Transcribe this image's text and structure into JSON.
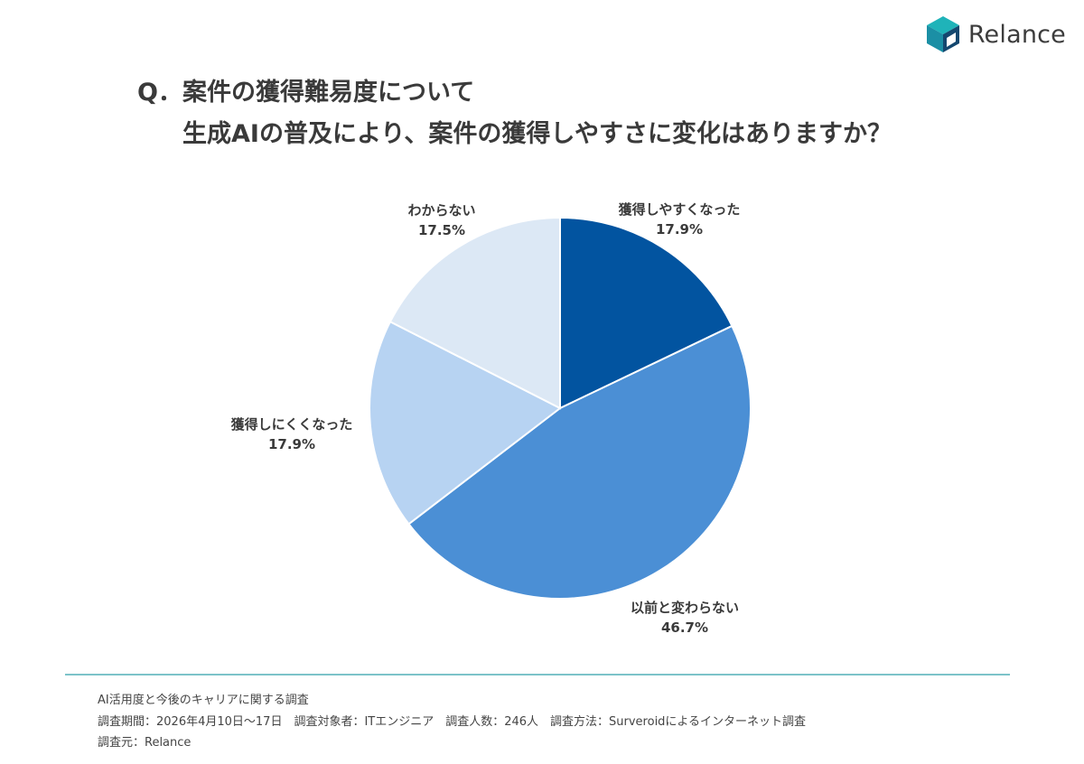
{
  "brand": {
    "name": "Relance",
    "icon": "cube-logo-icon",
    "colors": [
      "#1fb3b9",
      "#1b8fa5",
      "#14476f"
    ]
  },
  "question": {
    "prefix": "Q．",
    "line1": "案件の獲得難易度について",
    "line2": "生成AIの普及により、案件の獲得しやすさに変化はありますか？"
  },
  "chart_data": {
    "type": "pie",
    "start": "12 o'clock",
    "direction": "clockwise",
    "slices": [
      {
        "label": "獲得しやすくなった",
        "value": 17.9,
        "value_text": "17.9%",
        "color": "#0254a0"
      },
      {
        "label": "以前と変わらない",
        "value": 46.7,
        "value_text": "46.7%",
        "color": "#4b8fd5"
      },
      {
        "label": "獲得しにくくなった",
        "value": 17.9,
        "value_text": "17.9%",
        "color": "#b7d3f2"
      },
      {
        "label": "わからない",
        "value": 17.5,
        "value_text": "17.5%",
        "color": "#dce8f5"
      }
    ]
  },
  "footer": {
    "line1": "AI活用度と今後のキャリアに関する調査",
    "line2": "調査期間：2026年4月10日～17日　調査対象者：ITエンジニア　調査人数：246人　調査方法：Surveroidによるインターネット調査",
    "line3": "調査元：Relance"
  }
}
